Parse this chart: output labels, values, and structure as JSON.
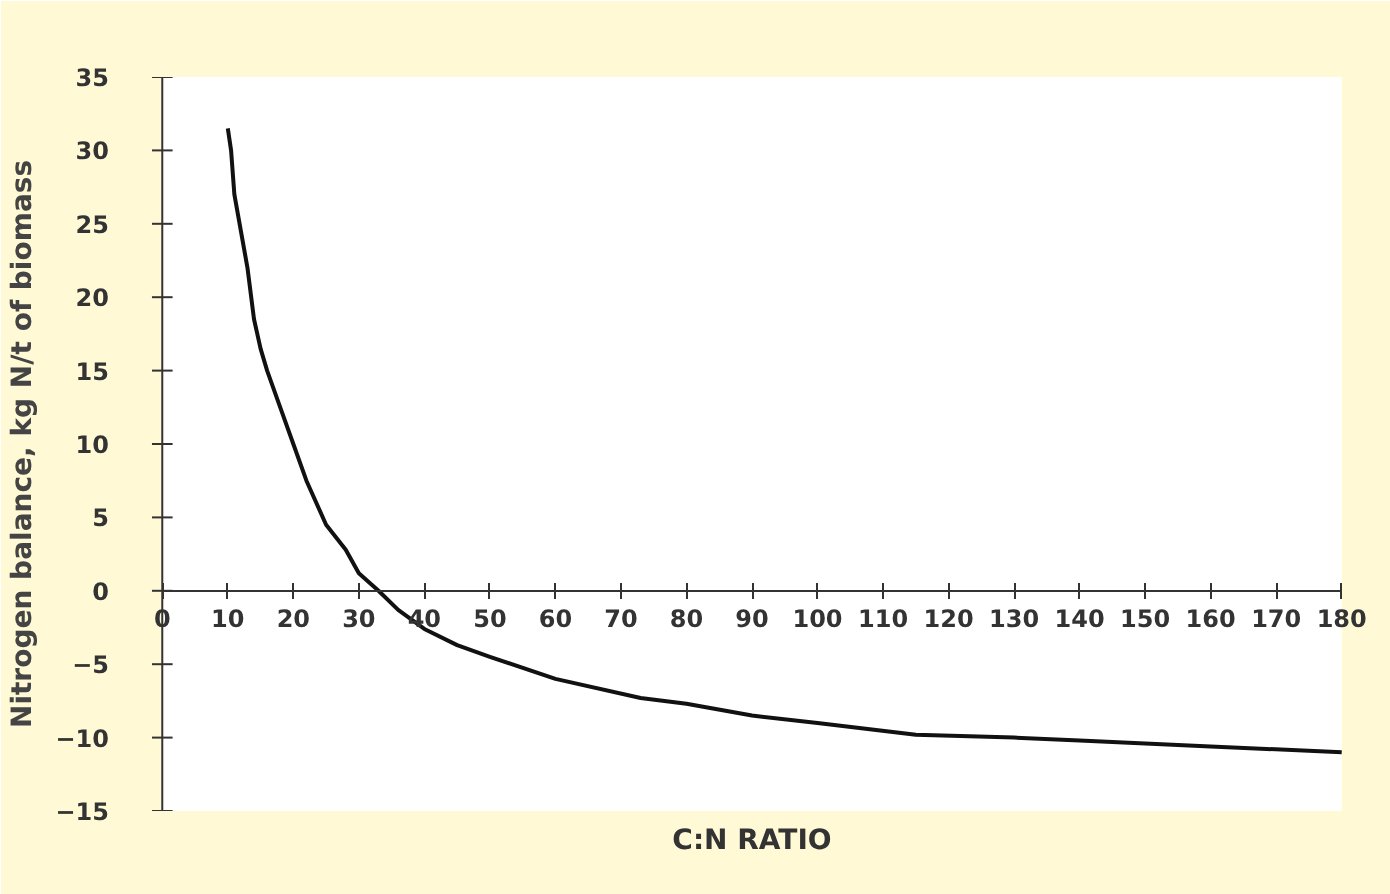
{
  "chart_data": {
    "type": "line",
    "xlabel": "C:N RATIO",
    "ylabel": "Nitrogen balance, kg N/t of biomass",
    "x": [
      10,
      10.5,
      11,
      12,
      13,
      14,
      15,
      16,
      18,
      20,
      22,
      25,
      28,
      30,
      33,
      36,
      40,
      45,
      50,
      60,
      73,
      80,
      90,
      100,
      115,
      130,
      140,
      160,
      180
    ],
    "series": [
      {
        "color": "#111111",
        "values": [
          31.5,
          30,
          27,
          24.5,
          22,
          18.5,
          16.5,
          15,
          12.5,
          10,
          7.5,
          4.5,
          2.8,
          1.2,
          0,
          -1.3,
          -2.6,
          -3.7,
          -4.5,
          -6.0,
          -7.3,
          -7.7,
          -8.5,
          -9.0,
          -9.8,
          -10.0,
          -10.2,
          -10.6,
          -11.0
        ]
      }
    ],
    "xlim": [
      0,
      180
    ],
    "ylim": [
      -15,
      35
    ],
    "xticks": [
      0,
      10,
      20,
      30,
      40,
      50,
      60,
      70,
      80,
      90,
      100,
      110,
      120,
      130,
      140,
      150,
      160,
      170,
      180
    ],
    "yticks": [
      -15,
      -10,
      -5,
      0,
      5,
      10,
      15,
      20,
      25,
      30,
      35
    ],
    "grid": false,
    "marker": "none",
    "line_style": "solid"
  }
}
